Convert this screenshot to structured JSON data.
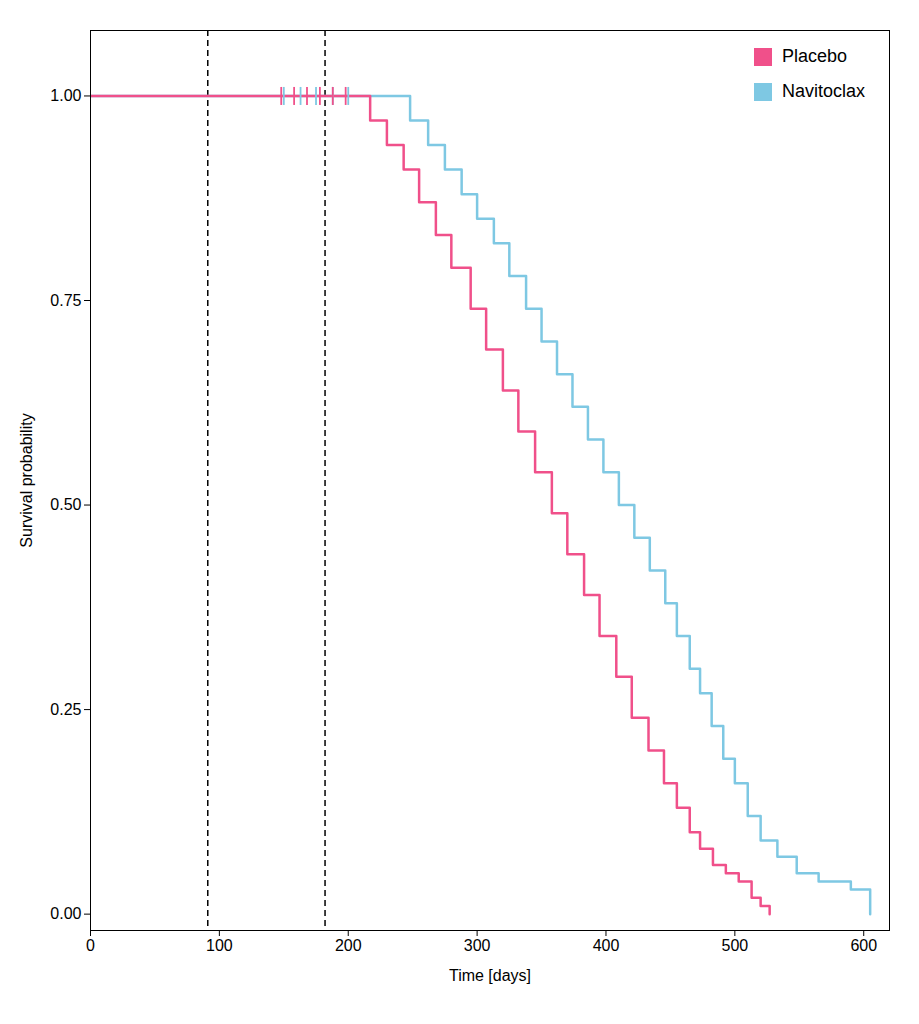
{
  "chart_data": {
    "type": "step",
    "xlabel": "Time [days]",
    "ylabel": "Survival probability",
    "series": [
      {
        "name": "Placebo",
        "color": "#F0508A",
        "x": [
          0,
          207,
          217,
          230,
          243,
          255,
          268,
          280,
          295,
          307,
          320,
          332,
          345,
          358,
          370,
          383,
          395,
          408,
          420,
          433,
          445,
          455,
          465,
          473,
          483,
          493,
          503,
          513,
          520,
          527
        ],
        "values": [
          1.0,
          1.0,
          0.97,
          0.94,
          0.91,
          0.87,
          0.83,
          0.79,
          0.74,
          0.69,
          0.64,
          0.59,
          0.54,
          0.49,
          0.44,
          0.39,
          0.34,
          0.29,
          0.24,
          0.2,
          0.16,
          0.13,
          0.1,
          0.08,
          0.06,
          0.05,
          0.04,
          0.02,
          0.01,
          0.0
        ],
        "censored": {
          "x": [
            148,
            158,
            168,
            178,
            188,
            198
          ],
          "y": 1.0
        }
      },
      {
        "name": "Navitoclax",
        "color": "#7EC8E3",
        "x": [
          0,
          230,
          248,
          262,
          275,
          288,
          300,
          313,
          325,
          338,
          350,
          362,
          374,
          386,
          398,
          410,
          422,
          434,
          446,
          455,
          465,
          473,
          482,
          491,
          500,
          510,
          520,
          533,
          548,
          565,
          590,
          605
        ],
        "values": [
          1.0,
          1.0,
          0.97,
          0.94,
          0.91,
          0.88,
          0.85,
          0.82,
          0.78,
          0.74,
          0.7,
          0.66,
          0.62,
          0.58,
          0.54,
          0.5,
          0.46,
          0.42,
          0.38,
          0.34,
          0.3,
          0.27,
          0.23,
          0.19,
          0.16,
          0.12,
          0.09,
          0.07,
          0.05,
          0.04,
          0.03,
          0.0
        ],
        "censored": {
          "x": [
            150,
            163,
            175,
            188,
            200
          ],
          "y": 1.0
        }
      }
    ],
    "vlines": [
      91,
      182
    ],
    "xlim": [
      0,
      620
    ],
    "ylim": [
      -0.02,
      1.08
    ],
    "xticks": [
      0,
      100,
      200,
      300,
      400,
      500,
      600
    ],
    "yticks": [
      {
        "value": 0.0,
        "label": "0.00"
      },
      0.25,
      {
        "value": 0.5,
        "label": "0.50"
      },
      0.75,
      {
        "value": 1.0,
        "label": "1.00"
      }
    ],
    "legend": "upper right",
    "grid": false
  }
}
